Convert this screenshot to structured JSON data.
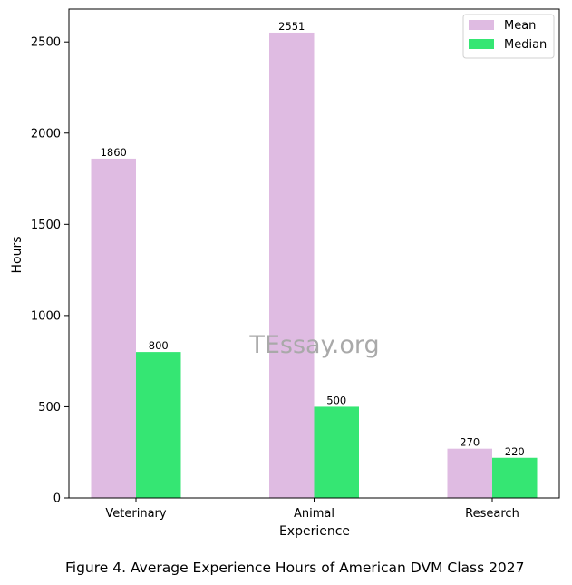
{
  "chart_data": {
    "type": "bar",
    "categories": [
      "Veterinary",
      "Animal",
      "Research"
    ],
    "series": [
      {
        "name": "Mean",
        "values": [
          1860,
          2551,
          270
        ],
        "color": "#dfbbe2"
      },
      {
        "name": "Median",
        "values": [
          800,
          500,
          220
        ],
        "color": "#35e673"
      }
    ],
    "xlabel": "Experience",
    "ylabel": "Hours",
    "ylim": [
      0,
      2680
    ],
    "yticks": [
      0,
      500,
      1000,
      1500,
      2000,
      2500
    ],
    "grid": false,
    "legend_position": "top-right",
    "watermark": "TEssay.org"
  },
  "caption": "Figure 4. Average Experience Hours of American DVM Class 2027"
}
